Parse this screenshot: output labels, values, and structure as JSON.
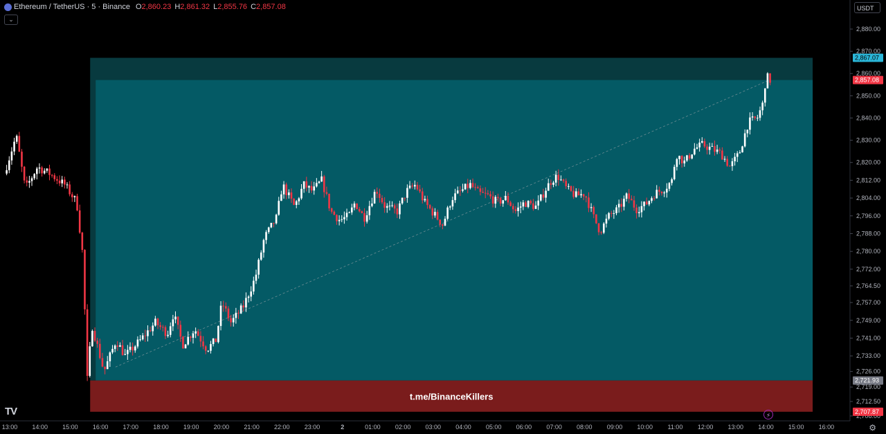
{
  "header": {
    "symbol": "Ethereum / TetherUS · 5 · Binance",
    "open_label": "O",
    "open": "2,860.23",
    "high_label": "H",
    "high": "2,861.32",
    "low_label": "L",
    "low": "2,855.76",
    "close_label": "C",
    "close": "2,857.08",
    "collapse_icon": "chevron-down-icon"
  },
  "currency": "USDT",
  "watermark": "t.me/BinanceKillers",
  "colors": {
    "background": "#000000",
    "up": "#ffffff",
    "down": "#f23645",
    "zone_dark": "#083a3f",
    "zone_main": "#045a65",
    "zone_stop": "#7a1c1c",
    "tag_blue": "#2bb7d9",
    "tag_red": "#f23645",
    "tag_grey": "#787b86"
  },
  "chart_data": {
    "type": "candlestick",
    "y_ticks": [
      2880,
      2870,
      2860,
      2850,
      2840,
      2830,
      2820,
      2812,
      2804,
      2796,
      2788,
      2780,
      2772,
      2764.5,
      2757,
      2749,
      2741,
      2733,
      2726,
      2719,
      2712.5,
      2706
    ],
    "y_tick_labels": [
      "2,880.00",
      "2,870.00",
      "2,860.00",
      "2,850.00",
      "2,840.00",
      "2,830.00",
      "2,820.00",
      "2,812.00",
      "2,804.00",
      "2,796.00",
      "2,788.00",
      "2,780.00",
      "2,772.00",
      "2,764.50",
      "2,757.00",
      "2,749.00",
      "2,741.00",
      "2,733.00",
      "2,726.00",
      "2,719.00",
      "2,712.50",
      "2,706.00"
    ],
    "x_ticks": [
      {
        "label": "13:00",
        "h": 13
      },
      {
        "label": "14:00",
        "h": 14
      },
      {
        "label": "15:00",
        "h": 15
      },
      {
        "label": "16:00",
        "h": 16
      },
      {
        "label": "17:00",
        "h": 17
      },
      {
        "label": "18:00",
        "h": 18
      },
      {
        "label": "19:00",
        "h": 19
      },
      {
        "label": "20:00",
        "h": 20
      },
      {
        "label": "21:00",
        "h": 21
      },
      {
        "label": "22:00",
        "h": 22
      },
      {
        "label": "23:00",
        "h": 23
      },
      {
        "label": "2",
        "h": 24
      },
      {
        "label": "01:00",
        "h": 25
      },
      {
        "label": "02:00",
        "h": 26
      },
      {
        "label": "03:00",
        "h": 27
      },
      {
        "label": "04:00",
        "h": 28
      },
      {
        "label": "05:00",
        "h": 29
      },
      {
        "label": "06:00",
        "h": 30
      },
      {
        "label": "07:00",
        "h": 31
      },
      {
        "label": "08:00",
        "h": 32
      },
      {
        "label": "09:00",
        "h": 33
      },
      {
        "label": "10:00",
        "h": 34
      },
      {
        "label": "11:00",
        "h": 35
      },
      {
        "label": "12:00",
        "h": 36
      },
      {
        "label": "13:00",
        "h": 37
      },
      {
        "label": "14:00",
        "h": 38
      },
      {
        "label": "15:00",
        "h": 39
      },
      {
        "label": "16:00",
        "h": 40
      }
    ],
    "price_path": [
      [
        12.9,
        2815
      ],
      [
        13.3,
        2832
      ],
      [
        13.6,
        2808
      ],
      [
        14.0,
        2818
      ],
      [
        14.4,
        2815
      ],
      [
        14.9,
        2810
      ],
      [
        15.3,
        2802
      ],
      [
        15.5,
        2778
      ],
      [
        15.65,
        2722
      ],
      [
        15.8,
        2747
      ],
      [
        16.2,
        2726
      ],
      [
        16.6,
        2740
      ],
      [
        16.9,
        2733
      ],
      [
        17.4,
        2740
      ],
      [
        17.9,
        2748
      ],
      [
        18.3,
        2743
      ],
      [
        18.5,
        2752
      ],
      [
        18.8,
        2738
      ],
      [
        19.2,
        2745
      ],
      [
        19.6,
        2736
      ],
      [
        19.9,
        2740
      ],
      [
        20.1,
        2757
      ],
      [
        20.4,
        2748
      ],
      [
        20.8,
        2755
      ],
      [
        21.2,
        2768
      ],
      [
        21.5,
        2786
      ],
      [
        21.9,
        2795
      ],
      [
        22.1,
        2810
      ],
      [
        22.5,
        2800
      ],
      [
        22.8,
        2810
      ],
      [
        23.1,
        2807
      ],
      [
        23.4,
        2812
      ],
      [
        23.7,
        2798
      ],
      [
        24.0,
        2794
      ],
      [
        24.3,
        2796
      ],
      [
        24.5,
        2802
      ],
      [
        24.8,
        2795
      ],
      [
        25.2,
        2808
      ],
      [
        25.5,
        2800
      ],
      [
        25.9,
        2798
      ],
      [
        26.2,
        2807
      ],
      [
        26.5,
        2810
      ],
      [
        26.8,
        2802
      ],
      [
        27.1,
        2797
      ],
      [
        27.4,
        2792
      ],
      [
        27.7,
        2804
      ],
      [
        28.0,
        2807
      ],
      [
        28.3,
        2810
      ],
      [
        28.6,
        2806
      ],
      [
        28.9,
        2805
      ],
      [
        29.2,
        2802
      ],
      [
        29.5,
        2804
      ],
      [
        29.8,
        2798
      ],
      [
        30.1,
        2802
      ],
      [
        30.5,
        2800
      ],
      [
        30.8,
        2808
      ],
      [
        31.0,
        2812
      ],
      [
        31.2,
        2814
      ],
      [
        31.5,
        2808
      ],
      [
        31.8,
        2805
      ],
      [
        32.1,
        2806
      ],
      [
        32.4,
        2795
      ],
      [
        32.6,
        2789
      ],
      [
        32.9,
        2796
      ],
      [
        33.2,
        2799
      ],
      [
        33.5,
        2805
      ],
      [
        33.8,
        2799
      ],
      [
        34.1,
        2801
      ],
      [
        34.4,
        2806
      ],
      [
        34.7,
        2808
      ],
      [
        35.0,
        2812
      ],
      [
        35.1,
        2824
      ],
      [
        35.4,
        2820
      ],
      [
        35.7,
        2826
      ],
      [
        36.0,
        2828
      ],
      [
        36.3,
        2826
      ],
      [
        36.6,
        2824
      ],
      [
        36.9,
        2818
      ],
      [
        37.2,
        2824
      ],
      [
        37.5,
        2838
      ],
      [
        37.8,
        2840
      ],
      [
        38.0,
        2847
      ],
      [
        38.1,
        2862
      ],
      [
        38.15,
        2857
      ]
    ],
    "zones": {
      "stop_top": 2721.93,
      "stop_bottom": 2707.87,
      "target_top": 2867.07,
      "entry_line": 2857.08,
      "start_h": 15.5,
      "end_h": 39.5
    },
    "trend_line": {
      "from": [
        16.5,
        2728
      ],
      "to": [
        38.1,
        2857
      ]
    },
    "price_tags": [
      {
        "label": "2,867.07",
        "value": 2867.07,
        "color": "blue"
      },
      {
        "label": "2,857.08",
        "value": 2857.08,
        "color": "red"
      },
      {
        "label": "2,721.93",
        "value": 2721.93,
        "color": "grey"
      },
      {
        "label": "2,707.87",
        "value": 2707.87,
        "color": "red"
      }
    ]
  }
}
